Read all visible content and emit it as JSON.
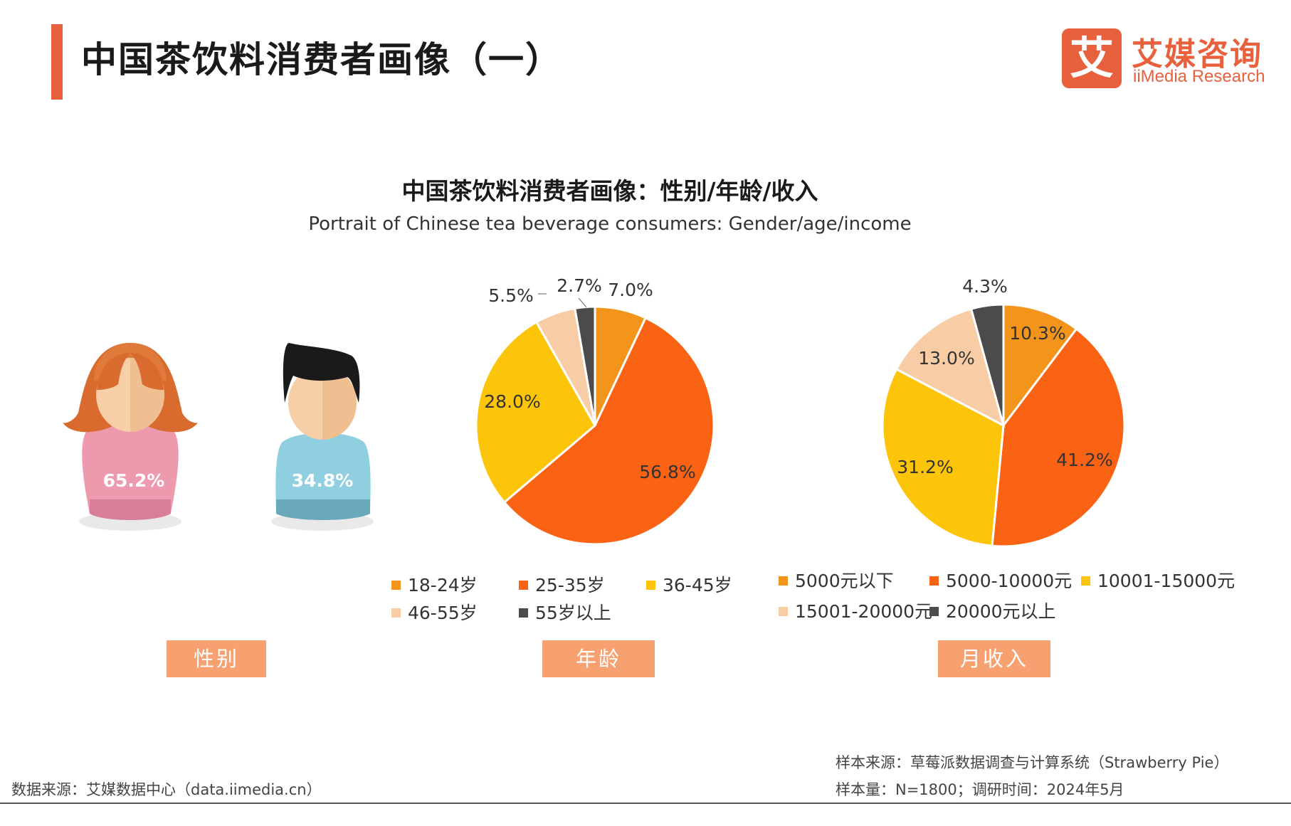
{
  "header": {
    "title": "中国茶饮料消费者画像（一）",
    "logo_mark": "艾",
    "logo_cn": "艾媒咨询",
    "logo_en": "iiMedia Research",
    "accent_color": "#e8603c"
  },
  "chart_title": "中国茶饮料消费者画像：性别/年龄/收入",
  "chart_subtitle": "Portrait of Chinese tea beverage consumers: Gender/age/income",
  "chart_data": [
    {
      "type": "pictogram",
      "title": "性别",
      "categories": [
        "女",
        "男"
      ],
      "values": [
        65.2,
        34.8
      ],
      "labels": [
        "65.2%",
        "34.8%"
      ]
    },
    {
      "type": "pie",
      "title": "年龄",
      "categories": [
        "18-24岁",
        "25-35岁",
        "36-45岁",
        "46-55岁",
        "55岁以上"
      ],
      "values": [
        7.0,
        56.8,
        28.0,
        5.5,
        2.7
      ],
      "labels": [
        "7.0%",
        "56.8%",
        "28.0%",
        "5.5%",
        "2.7%"
      ],
      "colors": [
        "#f3941b",
        "#fa6314",
        "#fcc50a",
        "#f8cca5",
        "#4b4b4d"
      ],
      "legend": "bottom"
    },
    {
      "type": "pie",
      "title": "月收入",
      "categories": [
        "5000元以下",
        "5000-10000元",
        "10001-15000元",
        "15001-20000元",
        "20000元以上"
      ],
      "values": [
        10.3,
        41.2,
        31.2,
        13.0,
        4.3
      ],
      "labels": [
        "10.3%",
        "41.2%",
        "31.2%",
        "13.0%",
        "4.3%"
      ],
      "colors": [
        "#f3941b",
        "#fa6314",
        "#fcc50a",
        "#f8cca5",
        "#4b4b4d"
      ],
      "legend": "bottom"
    }
  ],
  "footer": {
    "data_source": "数据来源：艾媒数据中心（data.iimedia.cn）",
    "sample_source": "样本来源：草莓派数据调查与计算系统（Strawberry Pie）",
    "sample_size": "样本量：N=1800；调研时间：2024年5月"
  }
}
